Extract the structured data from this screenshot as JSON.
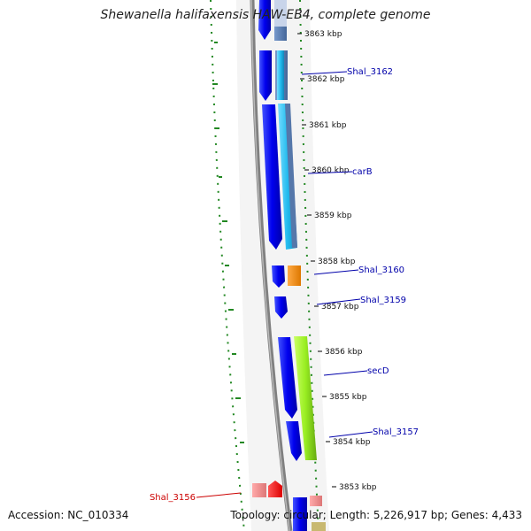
{
  "title": "Shewanella halifaxensis HAW-EB4, complete genome",
  "accession": "Accession: NC_010334",
  "topology": "Topology: circular; Length: 5,226,917 bp; Genes: 4,433",
  "kbp_ticks": [
    "3863 kbp",
    "3862 kbp",
    "3861 kbp",
    "3860 kbp",
    "3859 kbp",
    "3858 kbp",
    "3857 kbp",
    "3856 kbp",
    "3855 kbp",
    "3854 kbp",
    "3853 kbp"
  ],
  "gene_labels": [
    "Shal_3162",
    "carB",
    "Shal_3160",
    "Shal_3159",
    "secD",
    "Shal_3157",
    "Shal_3156"
  ],
  "colors": {
    "backbone": "#808080",
    "forward_gene": "#0000ee",
    "cds_light_blue": "#33bbee",
    "cds_steel_blue": "#5577aa",
    "cds_orange": "#ff8800",
    "cds_lime": "#99ee22",
    "reverse_gene": "#ee2222",
    "label_blue": "#0000aa",
    "label_red": "#cc0000",
    "tick_green": "#228822"
  }
}
